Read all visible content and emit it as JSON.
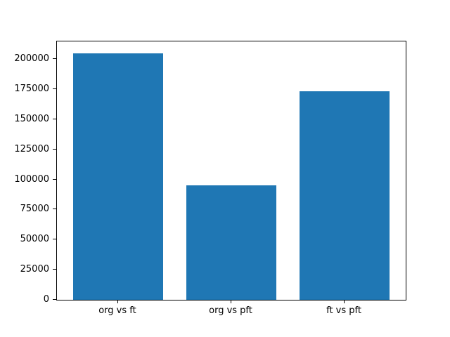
{
  "chart_data": {
    "type": "bar",
    "title": "",
    "xlabel": "",
    "ylabel": "",
    "categories": [
      "org vs ft",
      "org vs pft",
      "ft vs pft"
    ],
    "values": [
      205000,
      95000,
      173000
    ],
    "yticks": [
      0,
      25000,
      50000,
      75000,
      100000,
      125000,
      150000,
      175000,
      200000
    ],
    "ytick_labels": [
      "0",
      "25000",
      "50000",
      "75000",
      "100000",
      "125000",
      "150000",
      "175000",
      "200000"
    ],
    "ylim": [
      0,
      214700
    ],
    "xlim": [
      -0.54,
      2.54
    ],
    "bar_positions": [
      0,
      1,
      2
    ],
    "bar_width": 0.8,
    "bar_color": "#1f77b4",
    "axis_color": "#000000",
    "background_color": "#ffffff",
    "grid": false,
    "legend_position": "none"
  }
}
